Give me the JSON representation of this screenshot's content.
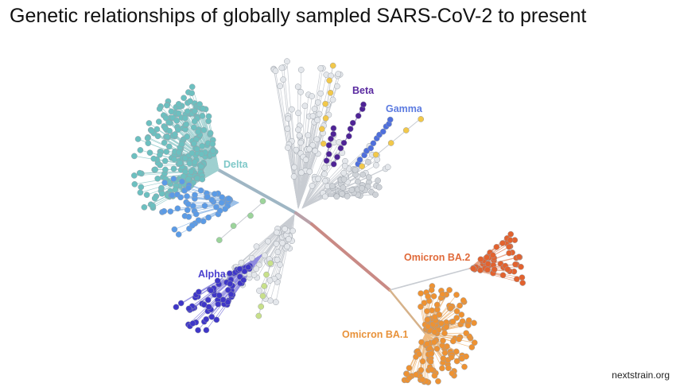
{
  "title": "Genetic relationships of globally sampled SARS-CoV-2 to present",
  "source": "nextstrain.org",
  "clades": [
    {
      "name": "Delta",
      "label": "Delta",
      "color": "#7ec8c8",
      "node_color": "#6cc0c0"
    },
    {
      "name": "Beta",
      "label": "Beta",
      "color": "#5a2aa0",
      "node_color": "#4f2396"
    },
    {
      "name": "Gamma",
      "label": "Gamma",
      "color": "#5c7be0",
      "node_color": "#4f6fdc"
    },
    {
      "name": "Alpha",
      "label": "Alpha",
      "color": "#4a3fcf",
      "node_color": "#3f36c8"
    },
    {
      "name": "Omicron BA.2",
      "label": "Omicron BA.2",
      "color": "#e06a3a",
      "node_color": "#e2622e"
    },
    {
      "name": "Omicron BA.1",
      "label": "Omicron BA.1",
      "color": "#e8923a",
      "node_color": "#ee9232"
    }
  ],
  "colors": {
    "background_branch": "#c8ccd2",
    "background_node": "#e4e7eb",
    "node_outline": "#9aa0a8",
    "yellow_node": "#f2c84a",
    "light_blue_node": "#5b9be6",
    "green_node": "#9cd49a"
  }
}
